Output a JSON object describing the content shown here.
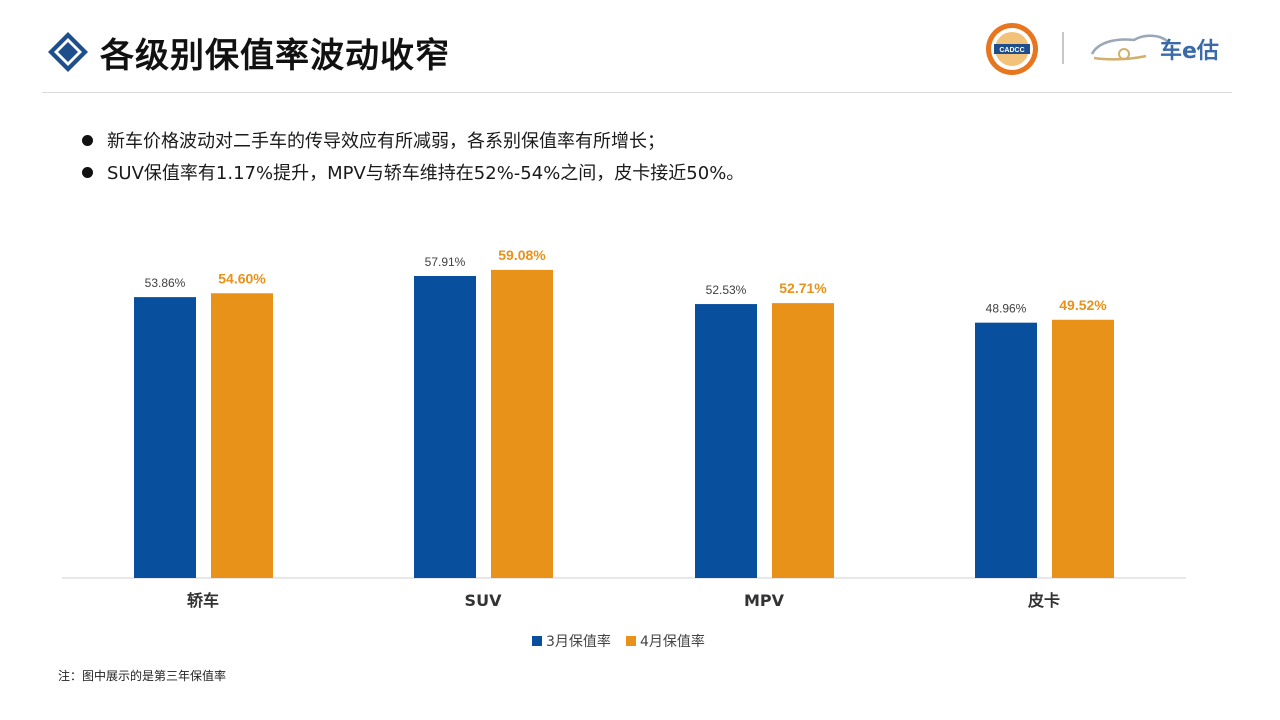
{
  "header": {
    "title": "各级别保值率波动收窄",
    "seal_text": "CADCC",
    "brand_text": "车e估"
  },
  "bullets": [
    "新车价格波动对二手车的传导效应有所减弱，各系别保值率有所增长；",
    "SUV保值率有1.17%提升，MPV与轿车维持在52%-54%之间，皮卡接近50%。"
  ],
  "chart_data": {
    "type": "bar",
    "categories": [
      "轿车",
      "SUV",
      "MPV",
      "皮卡"
    ],
    "series": [
      {
        "name": "3月保值率",
        "values": [
          53.86,
          57.91,
          52.53,
          48.96
        ],
        "labels": [
          "53.86%",
          "57.91%",
          "52.53%",
          "48.96%"
        ],
        "color": "#08509e"
      },
      {
        "name": "4月保值率",
        "values": [
          54.6,
          59.08,
          52.71,
          49.52
        ],
        "labels": [
          "54.60%",
          "59.08%",
          "52.71%",
          "49.52%"
        ],
        "color": "#e8921a"
      }
    ],
    "ylim": [
      0,
      62
    ],
    "legend": "bottom-center",
    "grid": false
  },
  "note": "注：图中展示的是第三年保值率",
  "colors": {
    "title_icon": "#1f4e8c",
    "series1": "#08509e",
    "series2": "#e8921a",
    "axis": "#d0d0d0"
  }
}
